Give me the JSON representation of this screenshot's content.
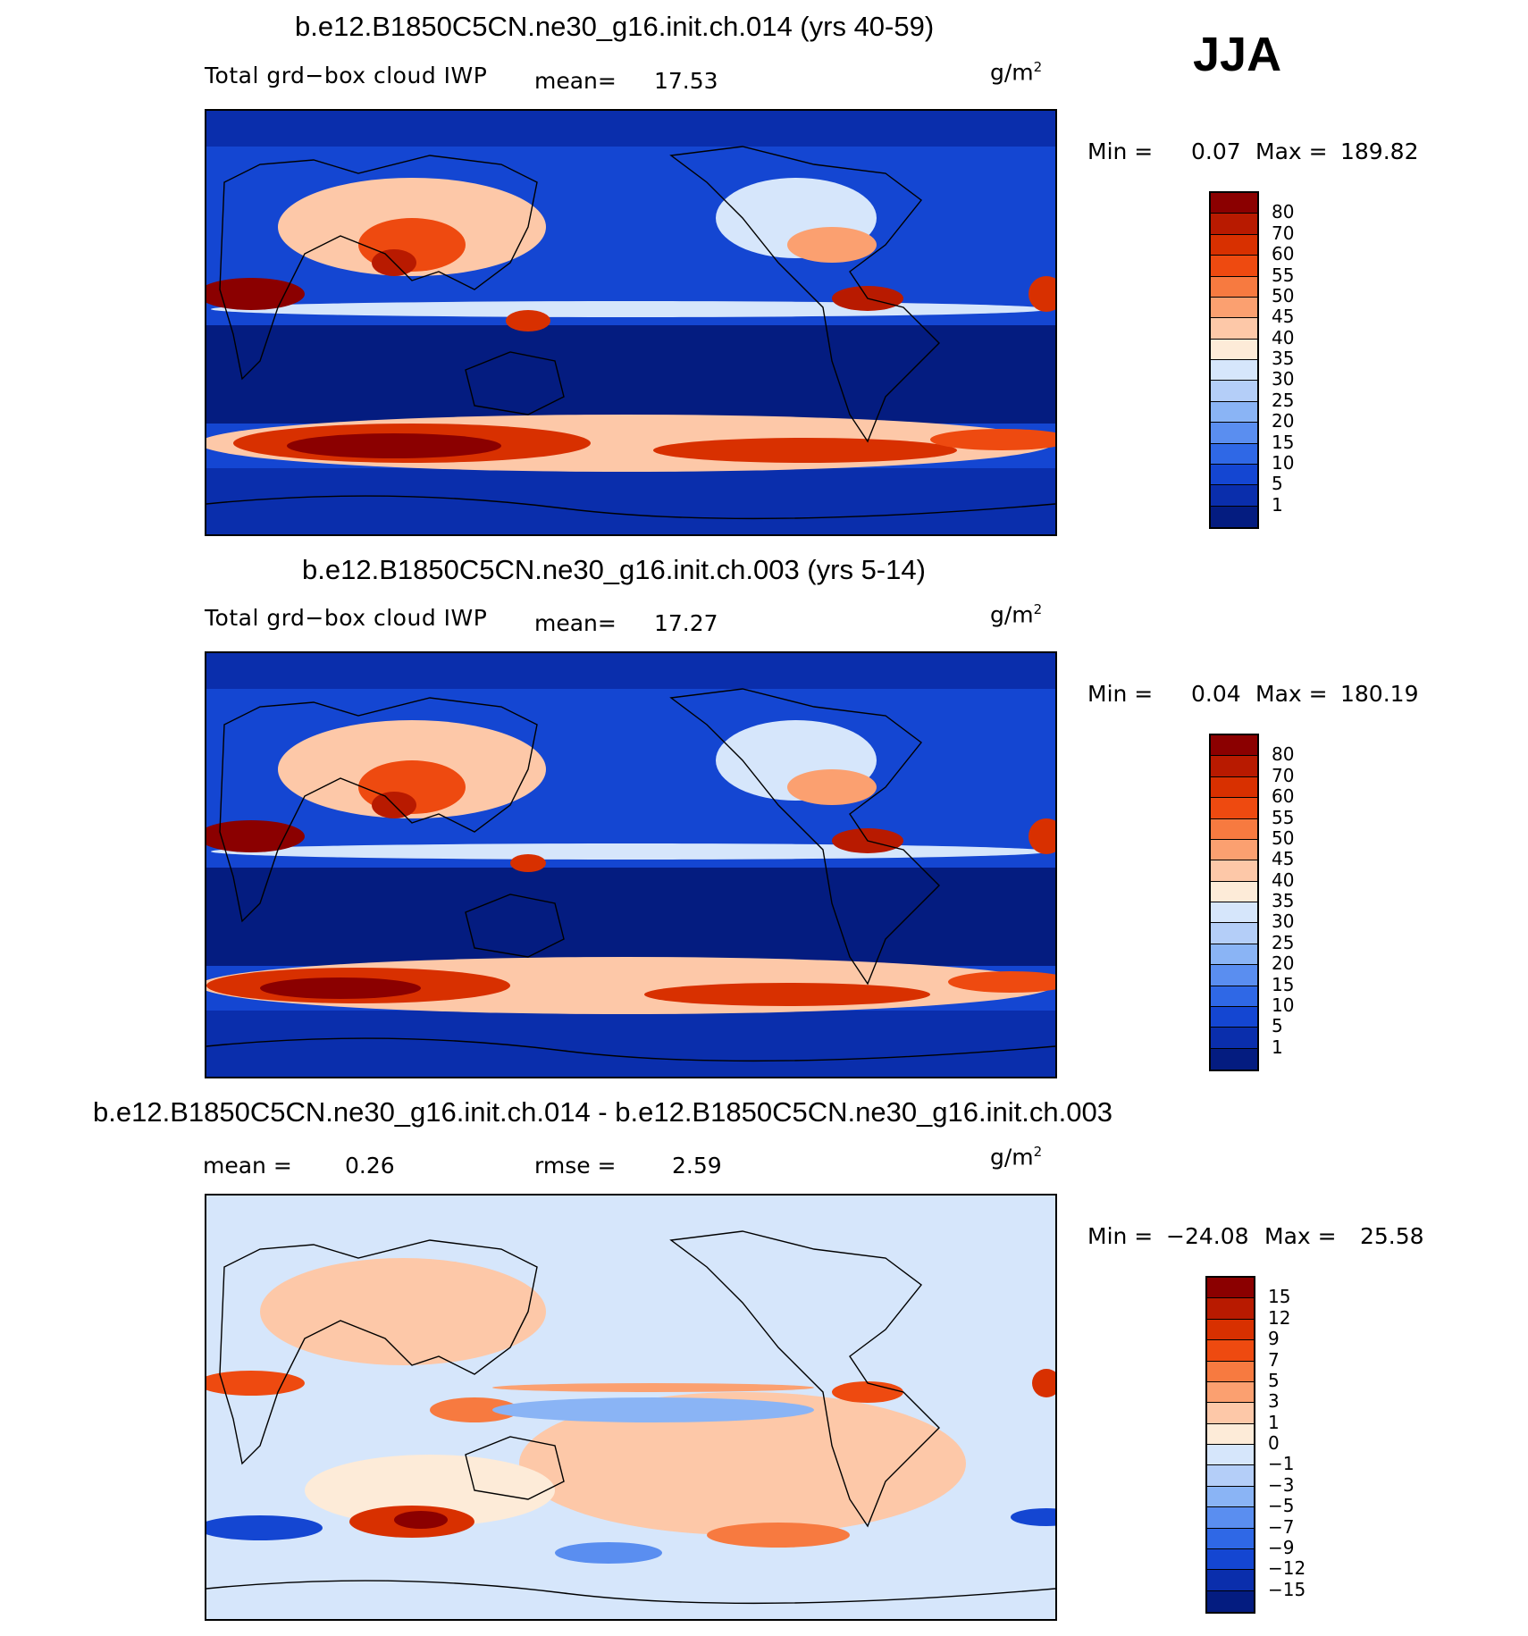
{
  "season": "JJA",
  "panels": [
    {
      "title": "b.e12.B1850C5CN.ne30_g16.init.ch.014 (yrs 40-59)",
      "variable": "Total grd−box cloud IWP",
      "stat1_label": "mean=",
      "stat1_value": "17.53",
      "stat2_label": "",
      "stat2_value": "",
      "units": "g/m",
      "units_sup": "2",
      "min_label": "Min =",
      "min_value": "0.07",
      "max_label": "Max =",
      "max_value": "189.82",
      "colorbar": {
        "labels": [
          "80",
          "70",
          "60",
          "55",
          "50",
          "45",
          "40",
          "35",
          "30",
          "25",
          "20",
          "15",
          "10",
          "5",
          "1"
        ],
        "colors": [
          "#8b0000",
          "#b81a00",
          "#d83000",
          "#ee4a10",
          "#f77a40",
          "#fba070",
          "#fdc8a8",
          "#fdebd8",
          "#d6e6fb",
          "#b4cef8",
          "#8ab4f5",
          "#5a8ef0",
          "#2f68e6",
          "#1446d2",
          "#0a2eac",
          "#041c80"
        ]
      },
      "map_palette": "abs"
    },
    {
      "title": "b.e12.B1850C5CN.ne30_g16.init.ch.003 (yrs 5-14)",
      "variable": "Total grd−box cloud IWP",
      "stat1_label": "mean=",
      "stat1_value": "17.27",
      "stat2_label": "",
      "stat2_value": "",
      "units": "g/m",
      "units_sup": "2",
      "min_label": "Min =",
      "min_value": "0.04",
      "max_label": "Max =",
      "max_value": "180.19",
      "colorbar": {
        "labels": [
          "80",
          "70",
          "60",
          "55",
          "50",
          "45",
          "40",
          "35",
          "30",
          "25",
          "20",
          "15",
          "10",
          "5",
          "1"
        ],
        "colors": [
          "#8b0000",
          "#b81a00",
          "#d83000",
          "#ee4a10",
          "#f77a40",
          "#fba070",
          "#fdc8a8",
          "#fdebd8",
          "#d6e6fb",
          "#b4cef8",
          "#8ab4f5",
          "#5a8ef0",
          "#2f68e6",
          "#1446d2",
          "#0a2eac",
          "#041c80"
        ]
      },
      "map_palette": "abs"
    },
    {
      "title": "b.e12.B1850C5CN.ne30_g16.init.ch.014 - b.e12.B1850C5CN.ne30_g16.init.ch.003",
      "variable": "",
      "stat1_label": "mean =",
      "stat1_value": "0.26",
      "stat2_label": "rmse =",
      "stat2_value": "2.59",
      "units": "g/m",
      "units_sup": "2",
      "min_label": "Min =",
      "min_value": "−24.08",
      "max_label": "Max =",
      "max_value": "25.58",
      "colorbar": {
        "labels": [
          "15",
          "12",
          "9",
          "7",
          "5",
          "3",
          "1",
          "0",
          "−1",
          "−3",
          "−5",
          "−7",
          "−9",
          "−12",
          "−15"
        ],
        "colors": [
          "#8b0000",
          "#b81a00",
          "#d83000",
          "#ee4a10",
          "#f77a40",
          "#fba070",
          "#fdc8a8",
          "#fdebd8",
          "#d6e6fb",
          "#b4cef8",
          "#8ab4f5",
          "#5a8ef0",
          "#2f68e6",
          "#1446d2",
          "#0a2eac",
          "#041c80"
        ]
      },
      "map_palette": "diff"
    }
  ]
}
